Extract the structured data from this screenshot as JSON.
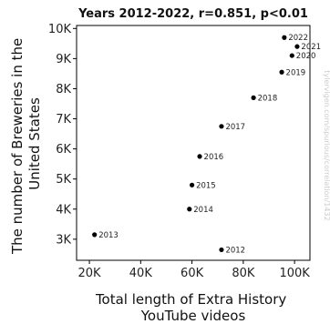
{
  "chart_data": {
    "type": "scatter",
    "title": "Years 2012-2022, r=0.851, p<0.01",
    "xlabel": [
      "Total length of Extra History",
      "YouTube videos"
    ],
    "ylabel": [
      "The number of Breweries in the",
      "United States"
    ],
    "xlim": [
      15000,
      106000
    ],
    "ylim": [
      2300,
      10100
    ],
    "xticks": [
      20000,
      40000,
      60000,
      80000,
      100000
    ],
    "xtick_labels": [
      "20K",
      "40K",
      "60K",
      "80K",
      "100K"
    ],
    "yticks": [
      3000,
      4000,
      5000,
      6000,
      7000,
      8000,
      9000,
      10000
    ],
    "ytick_labels": [
      "3K",
      "4K",
      "5K",
      "6K",
      "7K",
      "8K",
      "9K",
      "10K"
    ],
    "grid": false,
    "marker_color": "#000000",
    "points": [
      {
        "label": "2012",
        "x": 71500,
        "y": 2650
      },
      {
        "label": "2013",
        "x": 22000,
        "y": 3150
      },
      {
        "label": "2014",
        "x": 59000,
        "y": 4000
      },
      {
        "label": "2015",
        "x": 60000,
        "y": 4800
      },
      {
        "label": "2016",
        "x": 63000,
        "y": 5750
      },
      {
        "label": "2017",
        "x": 71500,
        "y": 6750
      },
      {
        "label": "2018",
        "x": 84000,
        "y": 7700
      },
      {
        "label": "2019",
        "x": 95000,
        "y": 8550
      },
      {
        "label": "2020",
        "x": 99000,
        "y": 9100
      },
      {
        "label": "2021",
        "x": 101000,
        "y": 9400
      },
      {
        "label": "2022",
        "x": 96000,
        "y": 9700
      }
    ],
    "watermark": "tylervigen.com/spurious/correlation/1432"
  }
}
